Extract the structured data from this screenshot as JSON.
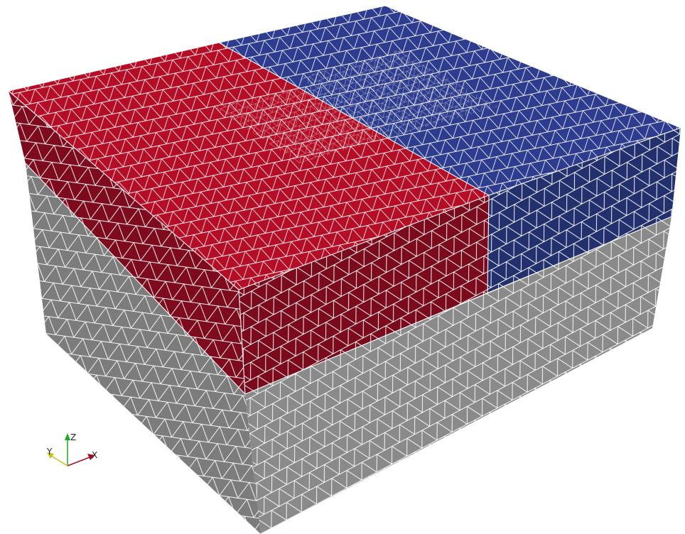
{
  "viewer": {
    "background": "#ffffff",
    "wireframe_color": "#ffffff"
  },
  "mesh": {
    "regions": [
      {
        "name": "red-region",
        "color": "#b50d26",
        "dark": "#7e0a1d"
      },
      {
        "name": "blue-region",
        "color": "#2e3c8f",
        "dark": "#22306e"
      },
      {
        "name": "gray-region",
        "color": "#8a8a8a",
        "dark": "#7c7c7c"
      }
    ]
  },
  "axes": {
    "labels": {
      "x": "X",
      "y": "Y",
      "z": "Z"
    },
    "colors": {
      "x": "#a0102a",
      "y": "#c8c020",
      "z": "#1fa81f"
    }
  }
}
